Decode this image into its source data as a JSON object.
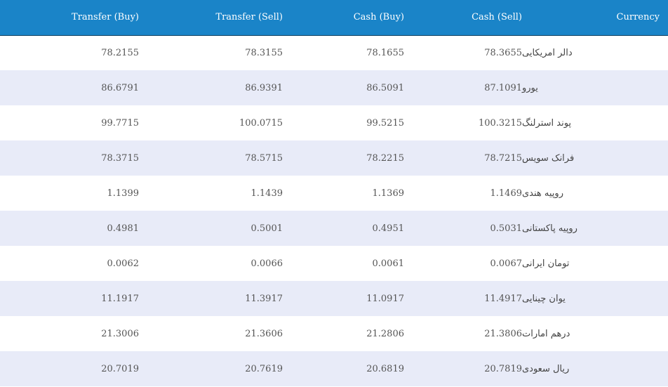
{
  "header": {
    "transfer_buy": "Transfer (Buy)",
    "transfer_sell": "Transfer (Sell)",
    "cash_buy": "Cash (Buy)",
    "cash_sell": "Cash (Sell)",
    "currency": "Currency"
  },
  "rows": [
    {
      "transfer_buy": "78.2155",
      "transfer_sell": "78.3155",
      "cash_buy": "78.1655",
      "cash_sell": "78.3655",
      "currency": "دالر امریکایی"
    },
    {
      "transfer_buy": "86.6791",
      "transfer_sell": "86.9391",
      "cash_buy": "86.5091",
      "cash_sell": "87.1091",
      "currency": "یورو"
    },
    {
      "transfer_buy": "99.7715",
      "transfer_sell": "100.0715",
      "cash_buy": "99.5215",
      "cash_sell": "100.3215",
      "currency": "پوند استرلنگ"
    },
    {
      "transfer_buy": "78.3715",
      "transfer_sell": "78.5715",
      "cash_buy": "78.2215",
      "cash_sell": "78.7215",
      "currency": "فرانک سویس"
    },
    {
      "transfer_buy": "1.1399",
      "transfer_sell": "1.1439",
      "cash_buy": "1.1369",
      "cash_sell": "1.1469",
      "currency": "روپیه هندی"
    },
    {
      "transfer_buy": "0.4981",
      "transfer_sell": "0.5001",
      "cash_buy": "0.4951",
      "cash_sell": "0.5031",
      "currency": "روپیه پاکستانی"
    },
    {
      "transfer_buy": "0.0062",
      "transfer_sell": "0.0066",
      "cash_buy": "0.0061",
      "cash_sell": "0.0067",
      "currency": "تومان ایرانی"
    },
    {
      "transfer_buy": "11.1917",
      "transfer_sell": "11.3917",
      "cash_buy": "11.0917",
      "cash_sell": "11.4917",
      "currency": "یوان چینایی"
    },
    {
      "transfer_buy": "21.3006",
      "transfer_sell": "21.3606",
      "cash_buy": "21.2806",
      "cash_sell": "21.3806",
      "currency": "درهم امارات"
    },
    {
      "transfer_buy": "20.7019",
      "transfer_sell": "20.7619",
      "cash_buy": "20.6819",
      "cash_sell": "20.7819",
      "currency": "ریال سعودی"
    }
  ]
}
